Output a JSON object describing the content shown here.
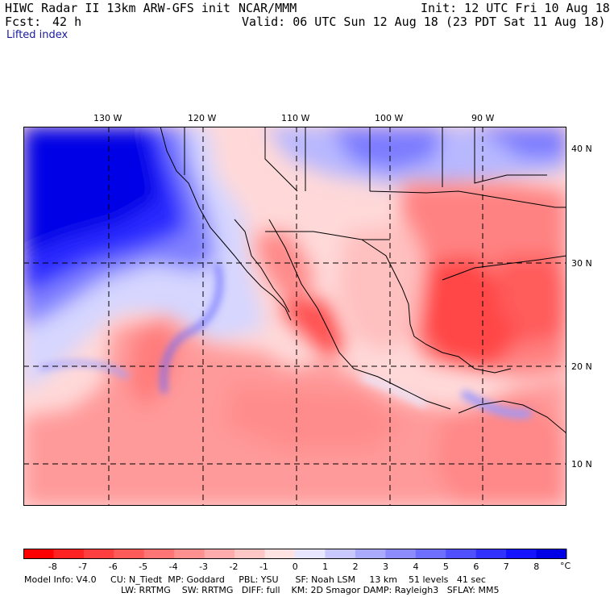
{
  "header": {
    "title": "HIWC Radar II 13km ARW-GFS init",
    "org": "NCAR/MMM",
    "init": "Init: 12 UTC Fri 10 Aug 18",
    "fcst_label": "Fcst:",
    "fcst_value": "42 h",
    "valid": "Valid: 06 UTC Sun 12 Aug 18 (23 PDT Sat 11 Aug 18)",
    "field": "Lifted index"
  },
  "map": {
    "lon_labels": [
      "130 W",
      "120 W",
      "110 W",
      "100 W",
      "90 W"
    ],
    "lat_labels": [
      "40 N",
      "30 N",
      "20 N",
      "10 N"
    ]
  },
  "colorbar": {
    "ticks": [
      "-8",
      "-7",
      "-6",
      "-5",
      "-4",
      "-3",
      "-2",
      "-1",
      "0",
      "1",
      "2",
      "3",
      "4",
      "5",
      "6",
      "7",
      "8"
    ],
    "unit": "°C",
    "colors": [
      "#ff0000",
      "#ff2222",
      "#ff3f3f",
      "#ff5a5a",
      "#ff7575",
      "#ff9090",
      "#ffabab",
      "#ffc6c6",
      "#ffe2e2",
      "#e6e6ff",
      "#c8c8ff",
      "#aaaaff",
      "#8c8cff",
      "#6e6eff",
      "#5050ff",
      "#3232ff",
      "#1414ff",
      "#0000e6"
    ]
  },
  "footer": {
    "line1": "Model Info: V4.0     CU: N_Tiedt  MP: Goddard     PBL: YSU      SF: Noah LSM     13 km    51 levels   41 sec",
    "line2": "LW: RRTMG    SW: RRTMG   DIFF: full    KM: 2D Smagor DAMP: Rayleigh3   SFLAY: MM5"
  }
}
